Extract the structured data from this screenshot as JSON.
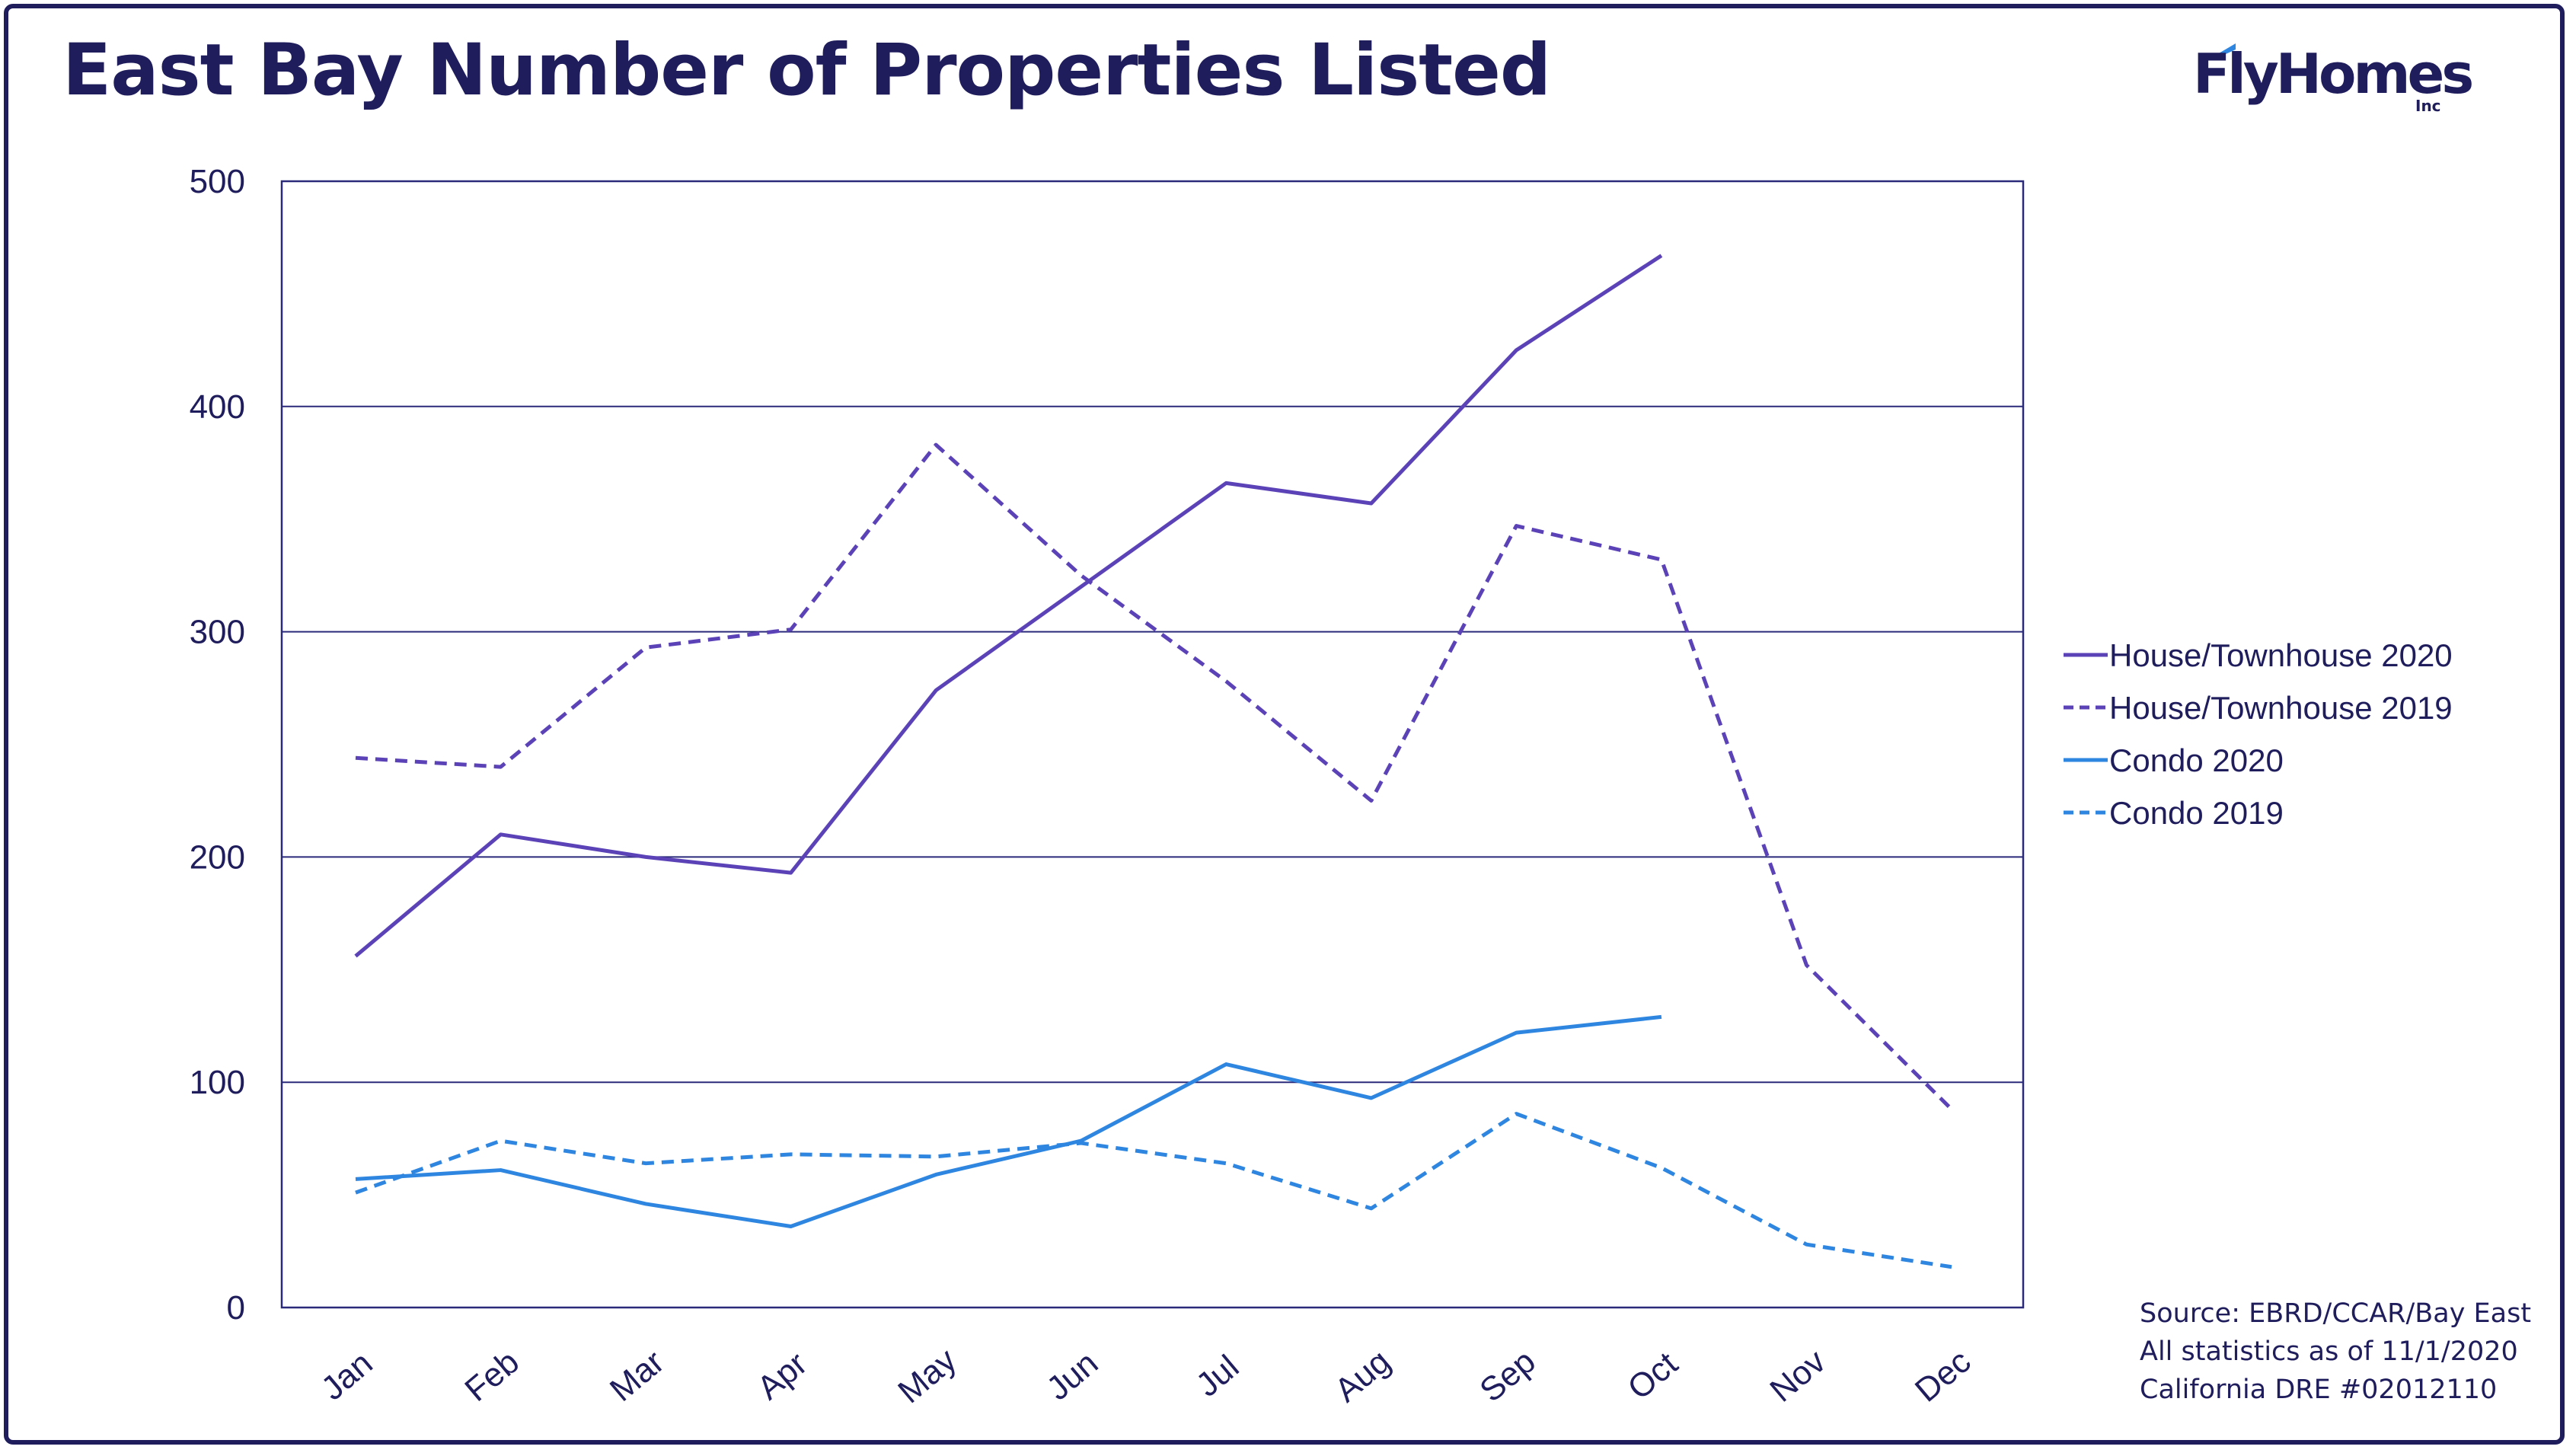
{
  "title": "East Bay Number of Properties Listed",
  "logo": {
    "text": "FlyHomes",
    "sub": "Inc"
  },
  "colors": {
    "navy": "#1f1d5c",
    "purple": "#5b43b7",
    "blue": "#2f86e0",
    "grid": "#2b2a7a"
  },
  "chart_data": {
    "type": "line",
    "categories": [
      "Jan",
      "Feb",
      "Mar",
      "Apr",
      "May",
      "Jun",
      "Jul",
      "Aug",
      "Sep",
      "Oct",
      "Nov",
      "Dec"
    ],
    "ylim": [
      0,
      500
    ],
    "yticks": [
      0,
      100,
      200,
      300,
      400,
      500
    ],
    "grid": true,
    "legend_position": "right",
    "series": [
      {
        "name": "House/Townhouse 2020",
        "color": "#5b43b7",
        "dashed": false,
        "values": [
          156,
          210,
          200,
          193,
          274,
          320,
          366,
          357,
          425,
          467,
          null,
          null
        ]
      },
      {
        "name": "House/Townhouse 2019",
        "color": "#5b43b7",
        "dashed": true,
        "values": [
          244,
          240,
          293,
          301,
          383,
          325,
          278,
          225,
          347,
          332,
          152,
          88
        ]
      },
      {
        "name": "Condo 2020",
        "color": "#2f86e0",
        "dashed": false,
        "values": [
          57,
          61,
          46,
          36,
          59,
          74,
          108,
          93,
          122,
          129,
          null,
          null
        ]
      },
      {
        "name": "Condo 2019",
        "color": "#2f86e0",
        "dashed": true,
        "values": [
          51,
          74,
          64,
          68,
          67,
          73,
          64,
          44,
          86,
          62,
          28,
          18
        ]
      }
    ]
  },
  "source": {
    "line1": "Source: EBRD/CCAR/Bay East",
    "line2": "All statistics as of 11/1/2020",
    "line3": "California DRE #02012110"
  }
}
